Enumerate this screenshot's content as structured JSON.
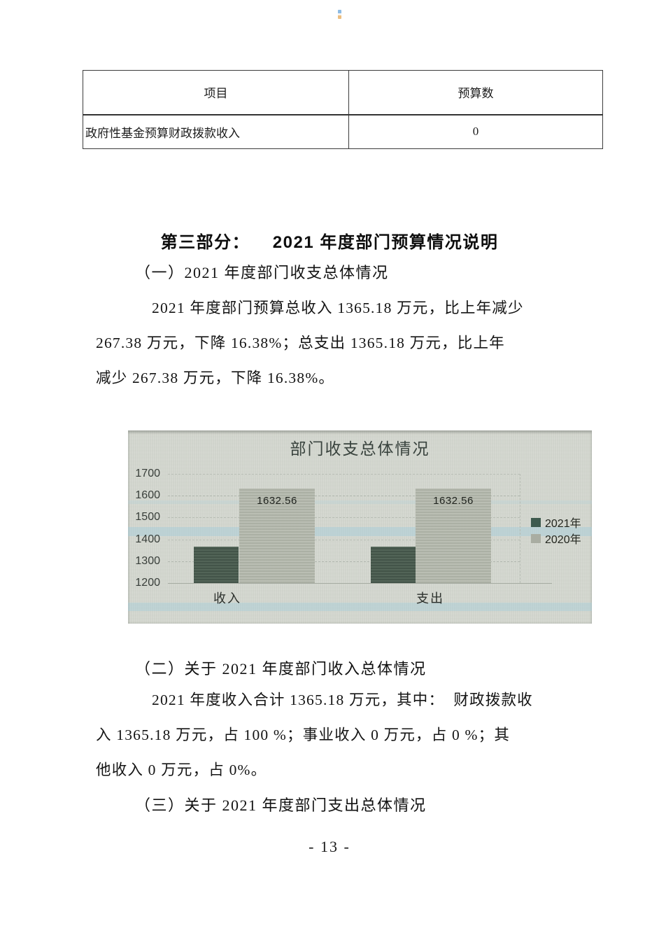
{
  "page": {
    "number_label": "- 13 -"
  },
  "table": {
    "headers": [
      "项目",
      "预算数"
    ],
    "rows": [
      [
        "政府性基金预算财政拨款收入",
        "0"
      ]
    ]
  },
  "headings": {
    "part3": "第三部分：    2021 年度部门预算情况说明",
    "s1": "（一）2021 年度部门收支总体情况",
    "s2": "（二）关于 2021 年度部门收入总体情况",
    "s3": "（三）关于 2021 年度部门支出总体情况"
  },
  "paragraphs": {
    "p1_lines": [
      "2021 年度部门预算总收入 1365.18 万元，比上年减少",
      "267.38 万元，下降 16.38%；总支出 1365.18 万元，比上年",
      "减少 267.38 万元，下降 16.38%。"
    ],
    "p2_lines": [
      "2021 年度收入合计 1365.18 万元，其中：  财政拨款收",
      "入 1365.18 万元，占 100 %；事业收入 0 万元，占 0 %；其",
      "他收入 0 万元，占 0%。"
    ]
  },
  "chart_data": {
    "type": "bar",
    "title": "部门收支总体情况",
    "categories": [
      "收入",
      "支出"
    ],
    "series": [
      {
        "name": "2021年",
        "values": [
          1365.18,
          1365.18
        ],
        "color_hex": "#4d5e52",
        "data_labels": null
      },
      {
        "name": "2020年",
        "values": [
          1632.56,
          1632.56
        ],
        "color_hex": "#b4b8ad",
        "data_labels": [
          "1632.56",
          "1632.56"
        ]
      }
    ],
    "ylim": [
      1200,
      1700
    ],
    "ytick_step": 100,
    "grid": true,
    "legend_position": "right",
    "legend_colors": {
      "2021年": "#3e5a4e",
      "2020年": "#a9ada2"
    }
  }
}
